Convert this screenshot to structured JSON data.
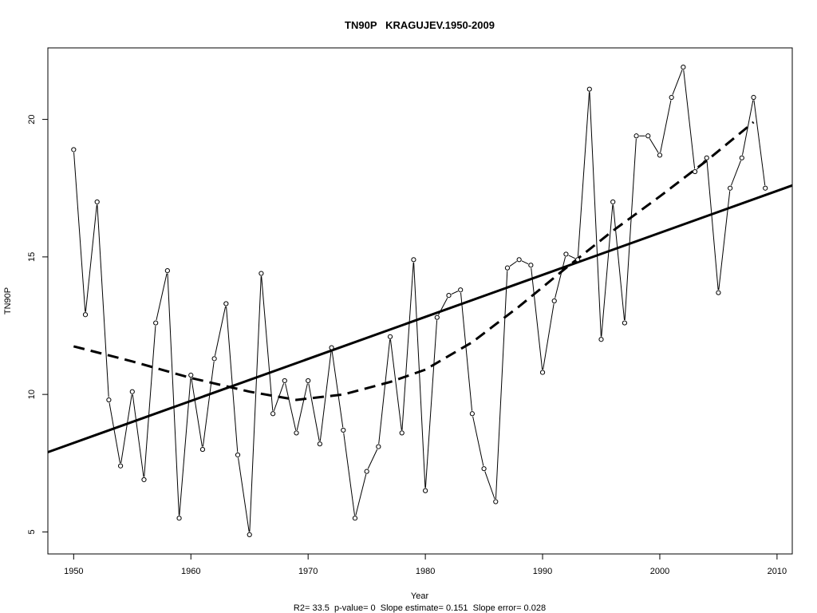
{
  "chart_data": {
    "type": "line",
    "title": "TN90P   KRAGUJEV.1950-2009",
    "xlabel": "Year",
    "ylabel": "TN90P",
    "caption": "R2= 33.5  p-value= 0  Slope estimate= 0.151  Slope error= 0.028",
    "xlim": [
      1947.8,
      2011.3
    ],
    "ylim": [
      4.2,
      22.6
    ],
    "x_ticks": [
      1950,
      1960,
      1970,
      1980,
      1990,
      2000,
      2010
    ],
    "y_ticks": [
      5,
      10,
      15,
      20
    ],
    "grid": false,
    "series": [
      {
        "style": "solid line with open circle markers",
        "x": [
          1950,
          1951,
          1952,
          1953,
          1954,
          1955,
          1956,
          1957,
          1958,
          1959,
          1960,
          1961,
          1962,
          1963,
          1964,
          1965,
          1966,
          1967,
          1968,
          1969,
          1970,
          1971,
          1972,
          1973,
          1974,
          1975,
          1976,
          1977,
          1978,
          1979,
          1980,
          1981,
          1982,
          1983,
          1984,
          1985,
          1986,
          1987,
          1988,
          1989,
          1990,
          1991,
          1992,
          1993,
          1994,
          1995,
          1996,
          1997,
          1998,
          1999,
          2000,
          2001,
          2002,
          2003,
          2004,
          2005,
          2006,
          2007,
          2008,
          2009
        ],
        "values": [
          18.9,
          12.9,
          17.0,
          9.8,
          7.4,
          10.1,
          6.9,
          12.6,
          14.5,
          5.5,
          10.7,
          8.0,
          11.3,
          13.3,
          7.8,
          4.9,
          14.4,
          9.3,
          10.5,
          8.6,
          10.5,
          8.2,
          11.7,
          8.7,
          5.5,
          7.2,
          8.1,
          12.1,
          8.6,
          14.9,
          6.5,
          12.8,
          13.6,
          13.8,
          9.3,
          7.3,
          6.1,
          14.6,
          14.9,
          14.7,
          10.8,
          13.4,
          15.1,
          14.9,
          21.1,
          12.0,
          17.0,
          12.6,
          19.4,
          19.4,
          18.7,
          20.8,
          21.9,
          18.1,
          18.6,
          13.7,
          17.5,
          18.6,
          20.8,
          17.5
        ]
      },
      {
        "style": "thick solid linear trend",
        "x": [
          1947.8,
          2011.3
        ],
        "values": [
          7.9,
          17.6
        ]
      },
      {
        "style": "thick dashed smooth curve",
        "x": [
          1950,
          1955,
          1960,
          1965,
          1969,
          1973,
          1977,
          1980,
          1984,
          1988,
          1992,
          1996,
          2000,
          2004,
          2008
        ],
        "values": [
          11.75,
          11.2,
          10.6,
          10.1,
          9.8,
          10.0,
          10.45,
          10.9,
          11.9,
          13.2,
          14.6,
          15.95,
          17.2,
          18.5,
          19.9
        ]
      }
    ]
  }
}
